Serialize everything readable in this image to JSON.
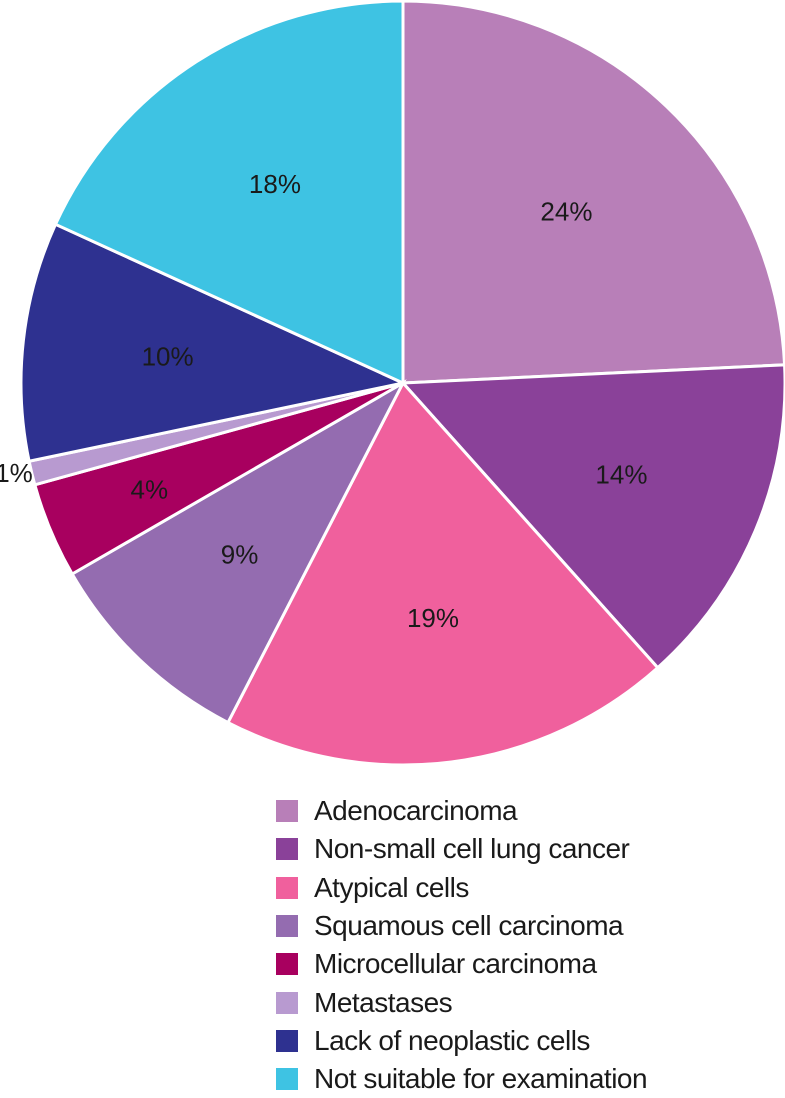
{
  "chart_data": {
    "type": "pie",
    "start_angle": "12 o'clock",
    "direction": "clockwise",
    "slices": [
      {
        "label": "Adenocarcinoma",
        "value": 24,
        "display": "24%",
        "color": "#b87fb8"
      },
      {
        "label": "Non-small cell lung cancer",
        "value": 14,
        "display": "14%",
        "color": "#8a4199"
      },
      {
        "label": "Atypical cells",
        "value": 19,
        "display": "19%",
        "color": "#f0609d"
      },
      {
        "label": "Squamous cell carcinoma",
        "value": 9,
        "display": "9%",
        "color": "#946cb0"
      },
      {
        "label": "Microcellular carcinoma",
        "value": 4,
        "display": "4%",
        "color": "#a8005f"
      },
      {
        "label": "Metastases",
        "value": 1,
        "display": "1%",
        "color": "#b89ad0"
      },
      {
        "label": "Lack of neoplastic cells",
        "value": 10,
        "display": "10%",
        "color": "#2e3190"
      },
      {
        "label": "Not suitable for examination",
        "value": 18,
        "display": "18%",
        "color": "#3ec3e3"
      }
    ],
    "legend_position": "bottom"
  }
}
